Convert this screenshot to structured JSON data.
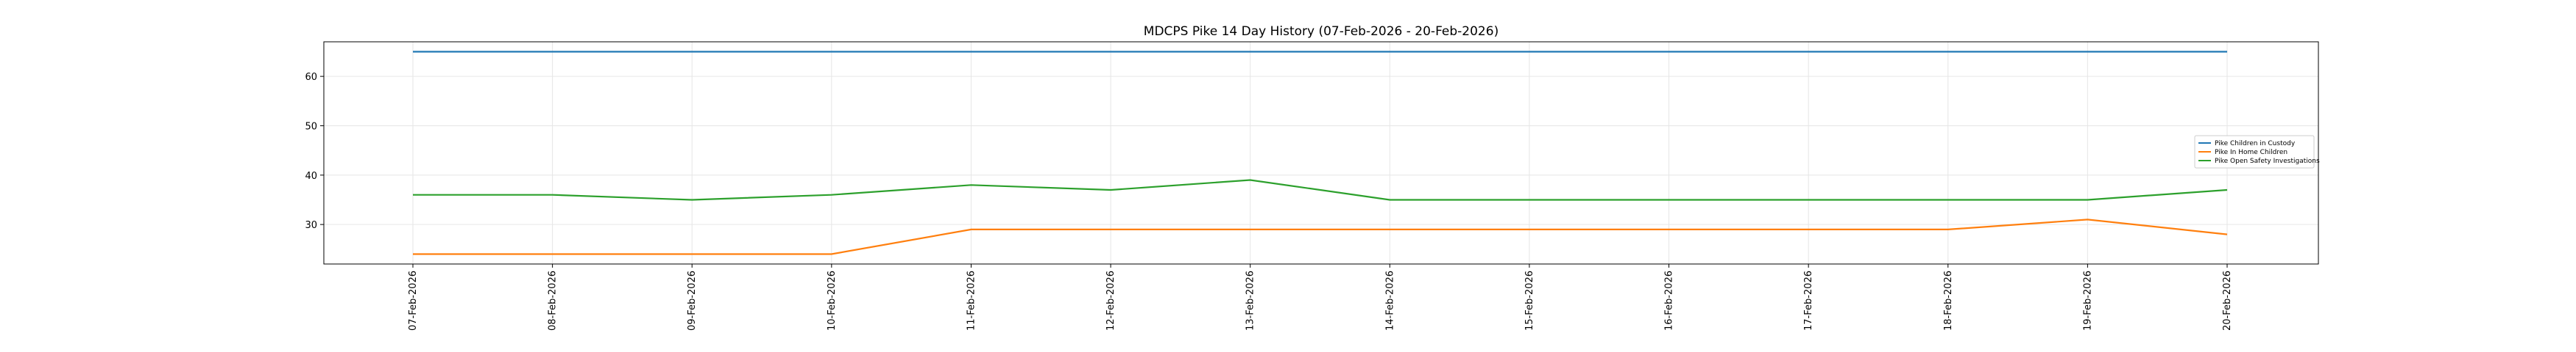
{
  "chart_data": {
    "type": "line",
    "title": "MDCPS Pike 14 Day History (07-Feb-2026 - 20-Feb-2026)",
    "xlabel": "",
    "ylabel": "",
    "categories": [
      "07-Feb-2026",
      "08-Feb-2026",
      "09-Feb-2026",
      "10-Feb-2026",
      "11-Feb-2026",
      "12-Feb-2026",
      "13-Feb-2026",
      "14-Feb-2026",
      "15-Feb-2026",
      "16-Feb-2026",
      "17-Feb-2026",
      "18-Feb-2026",
      "19-Feb-2026",
      "20-Feb-2026"
    ],
    "ylim": [
      22,
      67
    ],
    "yticks": [
      30,
      40,
      50,
      60
    ],
    "grid": true,
    "legend_position": "right",
    "series": [
      {
        "name": "Pike Children in Custody",
        "color": "#1f77b4",
        "values": [
          65,
          65,
          65,
          65,
          65,
          65,
          65,
          65,
          65,
          65,
          65,
          65,
          65,
          65
        ]
      },
      {
        "name": "Pike In Home Children",
        "color": "#ff7f0e",
        "values": [
          24,
          24,
          24,
          24,
          29,
          29,
          29,
          29,
          29,
          29,
          29,
          29,
          31,
          28
        ]
      },
      {
        "name": "Pike Open Safety Investigations",
        "color": "#2ca02c",
        "values": [
          36,
          36,
          35,
          36,
          38,
          37,
          39,
          35,
          35,
          35,
          35,
          35,
          35,
          37
        ]
      }
    ]
  }
}
